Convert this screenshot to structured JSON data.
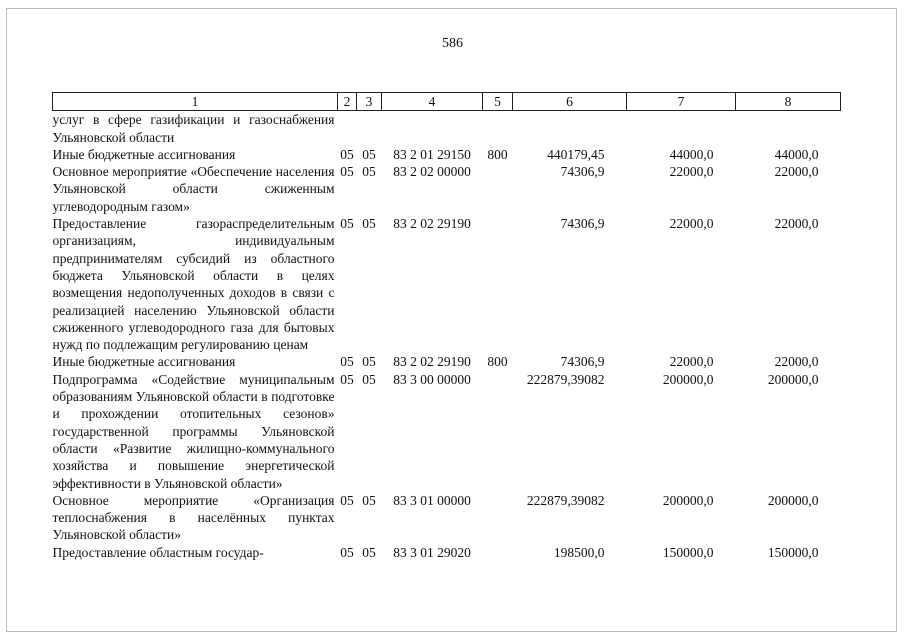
{
  "page_number": "586",
  "table": {
    "header": [
      "1",
      "2",
      "3",
      "4",
      "5",
      "6",
      "7",
      "8"
    ],
    "rows": [
      [
        "услуг в сфере газификации и газоснабжения Ульяновской области",
        null,
        null,
        null,
        null,
        null,
        null,
        null
      ],
      [
        "Иные бюджетные ассигнования",
        "05",
        "05",
        "83 2 01 29150",
        "800",
        "440179,45",
        "44000,0",
        "44000,0"
      ],
      [
        "Основное мероприятие «Обеспечение населения Ульяновской области сжиженным углеводородным газом»",
        "05",
        "05",
        "83 2 02 00000",
        null,
        "74306,9",
        "22000,0",
        "22000,0"
      ],
      [
        "Предоставление газораспределительным организациям, индивидуальным предпринимателям субсидий из областного бюджета Ульяновской области в целях возмещения недополученных доходов в связи с реализацией населению Ульяновской области сжиженного углеводородного газа для бытовых нужд по подлежащим регулированию ценам",
        "05",
        "05",
        "83 2 02 29190",
        null,
        "74306,9",
        "22000,0",
        "22000,0"
      ],
      [
        "Иные бюджетные ассигнования",
        "05",
        "05",
        "83 2 02 29190",
        "800",
        "74306,9",
        "22000,0",
        "22000,0"
      ],
      [
        "Подпрограмма «Содействие муниципальным образованиям Ульяновской области в подготовке и прохождении отопительных сезонов» государственной программы Ульяновской области «Развитие жилищно-коммунального хозяйства и повышение энергетической эффективности в Ульяновской области»",
        "05",
        "05",
        "83 3 00 00000",
        null,
        "222879,39082",
        "200000,0",
        "200000,0"
      ],
      [
        "Основное мероприятие «Организация теплоснабжения в населённых пунктах Ульяновской области»",
        "05",
        "05",
        "83 3 01 00000",
        null,
        "222879,39082",
        "200000,0",
        "200000,0"
      ],
      [
        "Предоставление областным государ-",
        "05",
        "05",
        "83 3 01 29020",
        null,
        "198500,0",
        "150000,0",
        "150000,0"
      ]
    ]
  }
}
